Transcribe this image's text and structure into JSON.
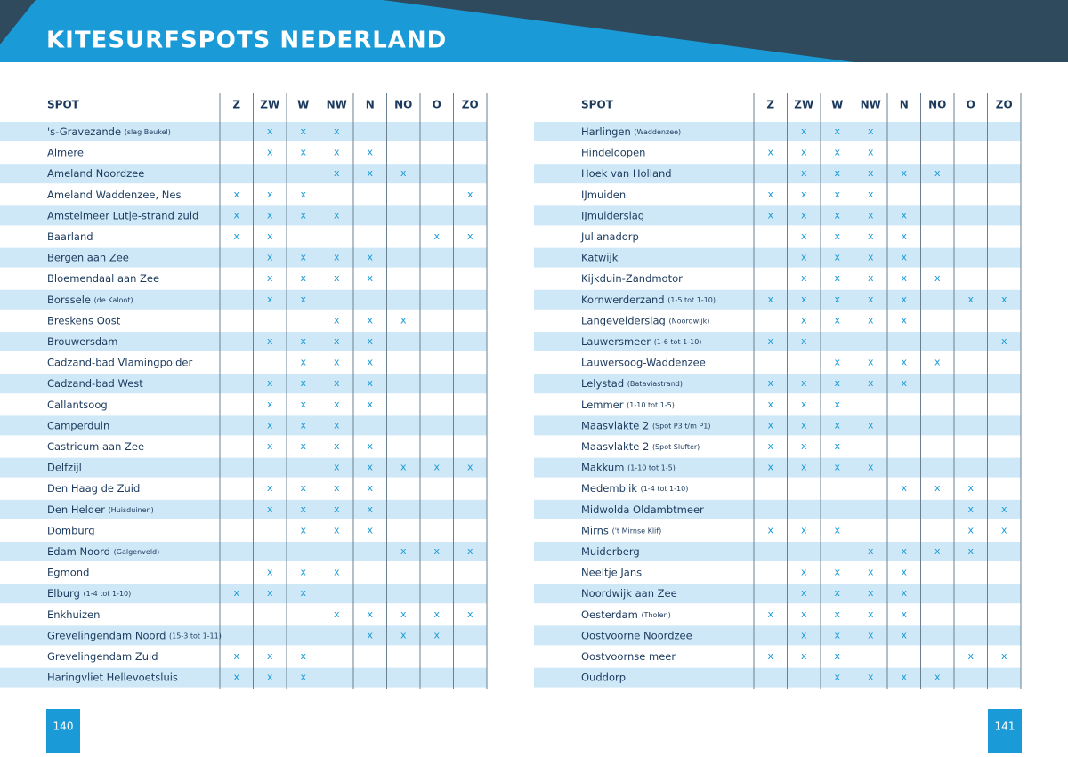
{
  "header": {
    "title": "KITESURFSPOTS NEDERLAND"
  },
  "columns": [
    "SPOT",
    "Z",
    "ZW",
    "W",
    "NW",
    "N",
    "NO",
    "O",
    "ZO"
  ],
  "pages": [
    {
      "page_number": "140",
      "rows": [
        {
          "spot": "'s-Gravezande",
          "note": "(slag Beukel)",
          "cells": [
            null,
            "x",
            "x",
            "x",
            null,
            null,
            null,
            null
          ]
        },
        {
          "spot": "Almere",
          "cells": [
            null,
            "x",
            "x",
            "x",
            "x",
            null,
            null,
            null
          ]
        },
        {
          "spot": "Ameland Noordzee",
          "cells": [
            null,
            null,
            null,
            "x",
            "x",
            "x",
            null,
            null
          ]
        },
        {
          "spot": "Ameland Waddenzee, Nes",
          "cells": [
            "x",
            "x",
            "x",
            null,
            null,
            null,
            null,
            "x"
          ]
        },
        {
          "spot": "Amstelmeer Lutje-strand zuid",
          "cells": [
            "x",
            "x",
            "x",
            "x",
            null,
            null,
            null,
            null
          ]
        },
        {
          "spot": "Baarland",
          "cells": [
            "x",
            "x",
            null,
            null,
            null,
            null,
            "x",
            "x"
          ]
        },
        {
          "spot": "Bergen aan Zee",
          "cells": [
            null,
            "x",
            "x",
            "x",
            "x",
            null,
            null,
            null
          ]
        },
        {
          "spot": "Bloemendaal aan Zee",
          "cells": [
            null,
            "x",
            "x",
            "x",
            "x",
            null,
            null,
            null
          ]
        },
        {
          "spot": "Borssele",
          "note": "(de Kaloot)",
          "cells": [
            null,
            "x",
            "x",
            null,
            null,
            null,
            null,
            null
          ]
        },
        {
          "spot": "Breskens Oost",
          "cells": [
            null,
            null,
            null,
            "x",
            "x",
            "x",
            null,
            null
          ]
        },
        {
          "spot": "Brouwersdam",
          "cells": [
            null,
            "x",
            "x",
            "x",
            "x",
            null,
            null,
            null
          ]
        },
        {
          "spot": "Cadzand-bad Vlamingpolder",
          "cells": [
            null,
            null,
            "x",
            "x",
            "x",
            null,
            null,
            null
          ]
        },
        {
          "spot": "Cadzand-bad West",
          "cells": [
            null,
            "x",
            "x",
            "x",
            "x",
            null,
            null,
            null
          ]
        },
        {
          "spot": "Callantsoog",
          "cells": [
            null,
            "x",
            "x",
            "x",
            "x",
            null,
            null,
            null
          ]
        },
        {
          "spot": "Camperduin",
          "cells": [
            null,
            "x",
            "x",
            "x",
            null,
            null,
            null,
            null
          ]
        },
        {
          "spot": "Castricum aan Zee",
          "cells": [
            null,
            "x",
            "x",
            "x",
            "x",
            null,
            null,
            null
          ]
        },
        {
          "spot": "Delfzijl",
          "cells": [
            null,
            null,
            null,
            "x",
            "x",
            "x",
            "x",
            "x"
          ]
        },
        {
          "spot": "Den Haag de Zuid",
          "cells": [
            null,
            "x",
            "x",
            "x",
            "x",
            null,
            null,
            null
          ]
        },
        {
          "spot": "Den Helder",
          "note": "(Huisduinen)",
          "cells": [
            null,
            "x",
            "x",
            "x",
            "x",
            null,
            null,
            null
          ]
        },
        {
          "spot": "Domburg",
          "cells": [
            null,
            null,
            "x",
            "x",
            "x",
            null,
            null,
            null
          ]
        },
        {
          "spot": "Edam Noord",
          "note": "(Galgenveld)",
          "cells": [
            null,
            null,
            null,
            null,
            null,
            "x",
            "x",
            "x"
          ]
        },
        {
          "spot": "Egmond",
          "cells": [
            null,
            "x",
            "x",
            "x",
            null,
            null,
            null,
            null
          ]
        },
        {
          "spot": "Elburg",
          "note": "(1-4 tot 1-10)",
          "cells": [
            "x",
            "x",
            "x",
            null,
            null,
            null,
            null,
            null
          ]
        },
        {
          "spot": "Enkhuizen",
          "cells": [
            null,
            null,
            null,
            "x",
            "x",
            "x",
            "x",
            "x"
          ]
        },
        {
          "spot": "Grevelingendam Noord",
          "note": "(15-3 tot 1-11)",
          "cells": [
            null,
            null,
            null,
            null,
            "x",
            "x",
            "x",
            null
          ]
        },
        {
          "spot": "Grevelingendam Zuid",
          "cells": [
            "x",
            "x",
            "x",
            null,
            null,
            null,
            null,
            null
          ]
        },
        {
          "spot": "Haringvliet Hellevoetsluis",
          "cells": [
            "x",
            "x",
            "x",
            null,
            null,
            null,
            null,
            null
          ]
        }
      ]
    },
    {
      "page_number": "141",
      "rows": [
        {
          "spot": "Harlingen",
          "note": "(Waddenzee)",
          "cells": [
            null,
            "x",
            "x",
            "x",
            null,
            null,
            null,
            null
          ]
        },
        {
          "spot": "Hindeloopen",
          "cells": [
            "x",
            "x",
            "x",
            "x",
            null,
            null,
            null,
            null
          ]
        },
        {
          "spot": "Hoek van Holland",
          "cells": [
            null,
            "x",
            "x",
            "x",
            "x",
            "x",
            null,
            null
          ]
        },
        {
          "spot": "IJmuiden",
          "cells": [
            "x",
            "x",
            "x",
            "x",
            null,
            null,
            null,
            null
          ]
        },
        {
          "spot": "IJmuiderslag",
          "cells": [
            "x",
            "x",
            "x",
            "x",
            "x",
            null,
            null,
            null
          ]
        },
        {
          "spot": "Julianadorp",
          "cells": [
            null,
            "x",
            "x",
            "x",
            "x",
            null,
            null,
            null
          ]
        },
        {
          "spot": "Katwijk",
          "cells": [
            null,
            "x",
            "x",
            "x",
            "x",
            null,
            null,
            null
          ]
        },
        {
          "spot": "Kijkduin-Zandmotor",
          "cells": [
            null,
            "x",
            "x",
            "x",
            "x",
            "x",
            null,
            null
          ]
        },
        {
          "spot": "Kornwerderzand",
          "note": "(1-5 tot 1-10)",
          "cells": [
            "x",
            "x",
            "x",
            "x",
            "x",
            null,
            "x",
            "x"
          ]
        },
        {
          "spot": "Langevelderslag",
          "note": "(Noordwijk)",
          "cells": [
            null,
            "x",
            "x",
            "x",
            "x",
            null,
            null,
            null
          ]
        },
        {
          "spot": "Lauwersmeer",
          "note": "(1-6 tot 1-10)",
          "cells": [
            "x",
            "x",
            null,
            null,
            null,
            null,
            null,
            "x"
          ]
        },
        {
          "spot": "Lauwersoog-Waddenzee",
          "cells": [
            null,
            null,
            "x",
            "x",
            "x",
            "x",
            null,
            null
          ]
        },
        {
          "spot": "Lelystad",
          "note": "(Bataviastrand)",
          "cells": [
            "x",
            "x",
            "x",
            "x",
            "x",
            null,
            null,
            null
          ]
        },
        {
          "spot": "Lemmer",
          "note": "(1-10 tot 1-5)",
          "cells": [
            "x",
            "x",
            "x",
            null,
            null,
            null,
            null,
            null
          ]
        },
        {
          "spot": "Maasvlakte 2",
          "note": "(Spot P3 t/m P1)",
          "cells": [
            "x",
            "x",
            "x",
            "x",
            null,
            null,
            null,
            null
          ]
        },
        {
          "spot": "Maasvlakte 2",
          "note": "(Spot Slufter)",
          "cells": [
            "x",
            "x",
            "x",
            null,
            null,
            null,
            null,
            null
          ]
        },
        {
          "spot": "Makkum",
          "note": "(1-10 tot 1-5)",
          "cells": [
            "x",
            "x",
            "x",
            "x",
            null,
            null,
            null,
            null
          ]
        },
        {
          "spot": "Medemblik",
          "note": "(1-4 tot 1-10)",
          "cells": [
            null,
            null,
            null,
            null,
            "x",
            "x",
            "x",
            null
          ]
        },
        {
          "spot": "Midwolda Oldambtmeer",
          "cells": [
            null,
            null,
            null,
            null,
            null,
            null,
            "x",
            "x"
          ]
        },
        {
          "spot": "Mirns",
          "note": "('t Mirnse Klif)",
          "cells": [
            "x",
            "x",
            "x",
            null,
            null,
            null,
            "x",
            "x"
          ]
        },
        {
          "spot": "Muiderberg",
          "cells": [
            null,
            null,
            null,
            "x",
            "x",
            "x",
            "x",
            null
          ]
        },
        {
          "spot": "Neeltje Jans",
          "cells": [
            null,
            "x",
            "x",
            "x",
            "x",
            null,
            null,
            null
          ]
        },
        {
          "spot": "Noordwijk aan Zee",
          "cells": [
            null,
            "x",
            "x",
            "x",
            "x",
            null,
            null,
            null
          ]
        },
        {
          "spot": "Oesterdam",
          "note": "(Tholen)",
          "cells": [
            "x",
            "x",
            "x",
            "x",
            "x",
            null,
            null,
            null
          ]
        },
        {
          "spot": "Oostvoorne Noordzee",
          "cells": [
            null,
            "x",
            "x",
            "x",
            "x",
            null,
            null,
            null
          ]
        },
        {
          "spot": "Oostvoornse meer",
          "cells": [
            "x",
            "x",
            "x",
            null,
            null,
            null,
            "x",
            "x"
          ]
        },
        {
          "spot": "Ouddorp",
          "cells": [
            null,
            null,
            "x",
            "x",
            "x",
            "x",
            null,
            null
          ]
        }
      ]
    }
  ]
}
